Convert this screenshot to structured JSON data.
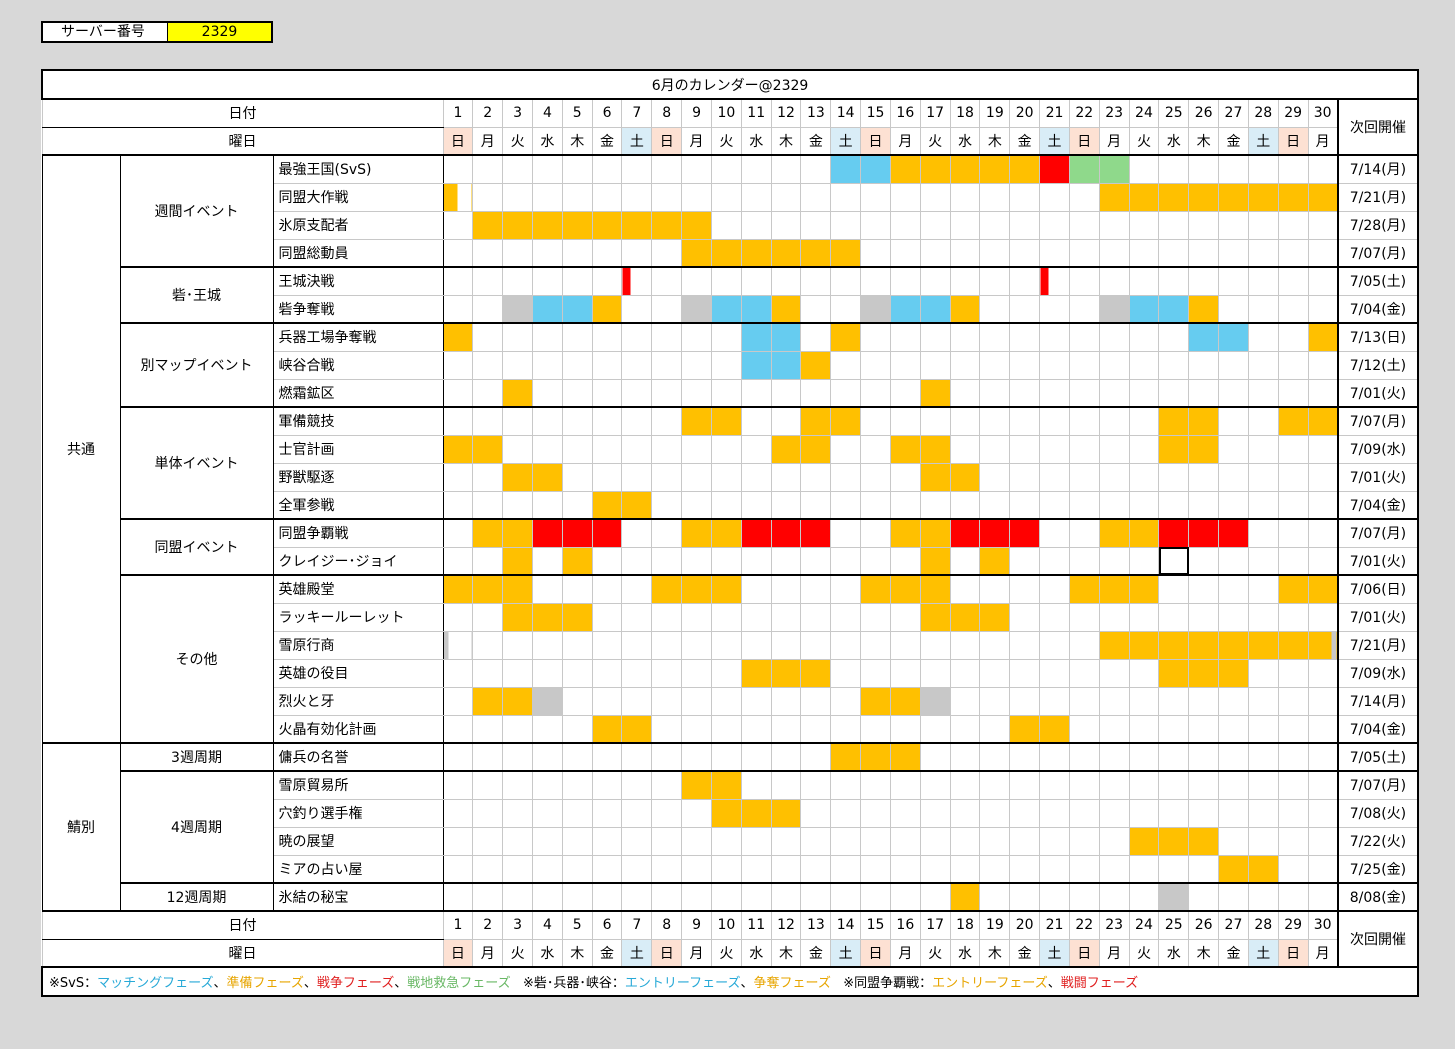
{
  "server": {
    "label": "サーバー番号",
    "value": "2329"
  },
  "title": "6月のカレンダー@2329",
  "header": {
    "date_label": "日付",
    "weekday_label": "曜日",
    "next_label": "次回開催"
  },
  "days": [
    "1",
    "2",
    "3",
    "4",
    "5",
    "6",
    "7",
    "8",
    "9",
    "10",
    "11",
    "12",
    "13",
    "14",
    "15",
    "16",
    "17",
    "18",
    "19",
    "20",
    "21",
    "22",
    "23",
    "24",
    "25",
    "26",
    "27",
    "28",
    "29",
    "30"
  ],
  "weekdays": [
    "日",
    "月",
    "火",
    "水",
    "木",
    "金",
    "土",
    "日",
    "月",
    "火",
    "水",
    "木",
    "金",
    "土",
    "日",
    "月",
    "火",
    "水",
    "木",
    "金",
    "土",
    "日",
    "月",
    "火",
    "水",
    "木",
    "金",
    "土",
    "日",
    "月"
  ],
  "groups": [
    {
      "name": "共通",
      "subgroups": [
        {
          "name": "週間イベント",
          "events": [
            {
              "name": "最強王国(SvS)",
              "next": "7/14(月)",
              "cells": "0000000000000bbooooorgg000000000"
            },
            {
              "name": "同盟大作戦",
              "next": "7/21(月)",
              "cells": "L000000000000000000000oooooooo0"
            },
            {
              "name": "氷原支配者",
              "next": "7/28(月)",
              "cells": "0oooooooo0000000000000000000000o"
            },
            {
              "name": "同盟総動員",
              "next": "7/07(月)",
              "cells": "00000000oooooo0000000000000000"
            }
          ]
        },
        {
          "name": "砦･王城",
          "events": [
            {
              "name": "王城決戦",
              "next": "7/05(土)",
              "cells": "000000|0000000000000|000000000"
            },
            {
              "name": "砦争奪戦",
              "next": "7/04(金)",
              "cells": "00ybbo00ybbo00ybbo0000ybbo0000"
            }
          ]
        },
        {
          "name": "別マップイベント",
          "events": [
            {
              "name": "兵器工場争奪戦",
              "next": "7/13(日)",
              "cells": "o000000000bb0o00000000000bb00o0"
            },
            {
              "name": "峡谷合戦",
              "next": "7/12(土)",
              "cells": "0000000000bbo00000000000000000"
            },
            {
              "name": "燃霜鉱区",
              "next": "7/01(火)",
              "cells": "00o0000000000000o0000000000000"
            }
          ]
        },
        {
          "name": "単体イベント",
          "events": [
            {
              "name": "軍備競技",
              "next": "7/07(月)",
              "cells": "00000000oo00oo0000000000oo00oo00"
            },
            {
              "name": "士官計画",
              "next": "7/09(水)",
              "cells": "oo000000000oo00oo0000000oo0000oo"
            },
            {
              "name": "野獣駆逐",
              "next": "7/01(火)",
              "cells": "00oo000000000000oo000000000000"
            },
            {
              "name": "全軍参戦",
              "next": "7/04(金)",
              "cells": "00000oo00000000000000000000000"
            }
          ]
        },
        {
          "name": "同盟イベント",
          "events": [
            {
              "name": "同盟争覇戦",
              "next": "7/07(月)",
              "cells": "0oorrr00oorrr00oorrr00oorrr000o"
            },
            {
              "name": "クレイジー･ジョイ",
              "next": "7/01(火)",
              "cells": "00o0o00000000000o0o00000X00000"
            }
          ]
        },
        {
          "name": "その他",
          "events": [
            {
              "name": "英雄殿堂",
              "next": "7/06(日)",
              "cells": "ooo0000ooo0000ooo0000ooo0000oo"
            },
            {
              "name": "ラッキールーレット",
              "next": "7/01(火)",
              "cells": "00ooo00000000000ooo00000000000"
            },
            {
              "name": "雪原行商",
              "next": "7/21(月)",
              "cells": "G000000000000000000000oooooooR0"
            },
            {
              "name": "英雄の役目",
              "next": "7/09(水)",
              "cells": "0000000000ooo00000000000ooo000"
            },
            {
              "name": "烈火と牙",
              "next": "7/14(月)",
              "cells": "0ooy0000000000ooy0000000000000o"
            },
            {
              "name": "火晶有効化計画",
              "next": "7/04(金)",
              "cells": "00000oo000000000000oo000000000"
            }
          ]
        }
      ]
    },
    {
      "name": "鯖別",
      "subgroups": [
        {
          "name": "3週周期",
          "events": [
            {
              "name": "傭兵の名誉",
              "next": "7/05(土)",
              "cells": "0000000000000ooo00000000000000"
            }
          ]
        },
        {
          "name": "4週周期",
          "events": [
            {
              "name": "雪原貿易所",
              "next": "7/07(月)",
              "cells": "00000000oo00000000000000000000"
            },
            {
              "name": "穴釣り選手権",
              "next": "7/08(火)",
              "cells": "000000000ooo000000000000000000"
            },
            {
              "name": "暁の展望",
              "next": "7/22(火)",
              "cells": "00000000000000000000000ooo0000"
            },
            {
              "name": "ミアの占い屋",
              "next": "7/25(金)",
              "cells": "00000000000000000000000000oo00"
            }
          ]
        },
        {
          "name": "12週周期",
          "events": [
            {
              "name": "氷結の秘宝",
              "next": "8/08(金)",
              "cells": "00000000000000000o000000y00000"
            }
          ]
        }
      ]
    }
  ],
  "legend": {
    "svs_prefix": "※SvS：",
    "svs_matching": "マッチングフェーズ",
    "svs_prep": "準備フェーズ",
    "svs_war": "戦争フェーズ",
    "svs_relief": "戦地救急フェーズ",
    "fort_prefix": "※砦･兵器･峡谷：",
    "fort_entry": "エントリーフェーズ",
    "fort_battle": "争奪フェーズ",
    "alliance_prefix": "※同盟争覇戦：",
    "alliance_entry": "エントリーフェーズ",
    "alliance_battle": "戦闘フェーズ",
    "sep": "、"
  },
  "colors": {
    "orange": "#ffc000",
    "blue": "#66ccf0",
    "red": "#ff0000",
    "green": "#8fd98b",
    "gray": "#c8c8c8",
    "sunday": "#fde1d3",
    "saturday": "#d9edf7"
  }
}
